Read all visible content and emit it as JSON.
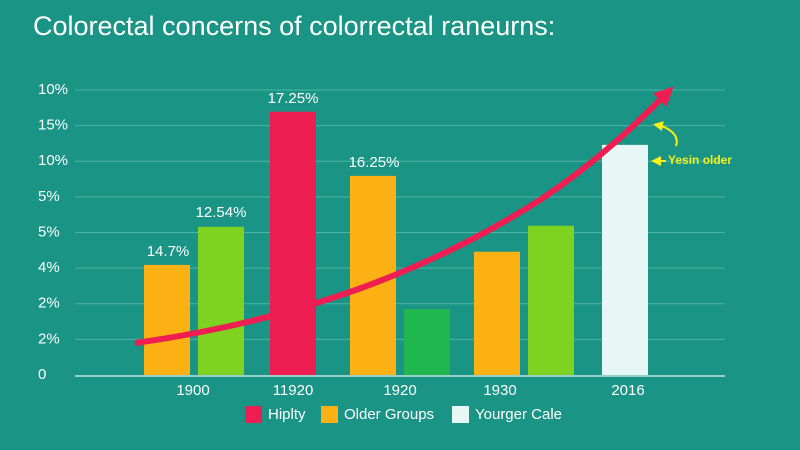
{
  "chart_data": {
    "type": "bar",
    "title": "Colorectal concerns of colorrectal raneurns:",
    "categories": [
      "1900",
      "11920",
      "1920",
      "1930",
      "2016"
    ],
    "series": [
      {
        "name": "Hiplty",
        "color": "#ee1d52",
        "values": [
          null,
          7.39,
          null,
          null,
          null
        ]
      },
      {
        "name": "Older Groups",
        "color": "#fbb014",
        "values": [
          3.09,
          null,
          5.59,
          3.46,
          null
        ]
      },
      {
        "colors": [
          "#7ed321",
          null,
          "#20b74f",
          "#7ed321",
          null
        ],
        "values": [
          4.16,
          null,
          1.85,
          4.19,
          null
        ]
      },
      {
        "name": "Yourger Cale",
        "color": "#e6f7f5",
        "values": [
          null,
          null,
          null,
          null,
          6.46
        ]
      }
    ],
    "annotations": [
      "14.7%",
      "12.54%",
      "17.25%",
      "16.25%",
      "Yesin older"
    ],
    "ylim": [
      0,
      8
    ],
    "yticks": [
      0,
      {
        "value": 1,
        "label": "2%"
      },
      {
        "value": 2,
        "label": "2%"
      },
      {
        "value": 3,
        "label": "4%"
      },
      {
        "value": 4,
        "label": "5%"
      },
      {
        "value": 5,
        "label": "5%"
      },
      {
        "value": 6,
        "label": "10%"
      },
      {
        "value": 7,
        "label": "15%"
      },
      {
        "value": 8,
        "label": "10%"
      }
    ],
    "grid": true
  }
}
